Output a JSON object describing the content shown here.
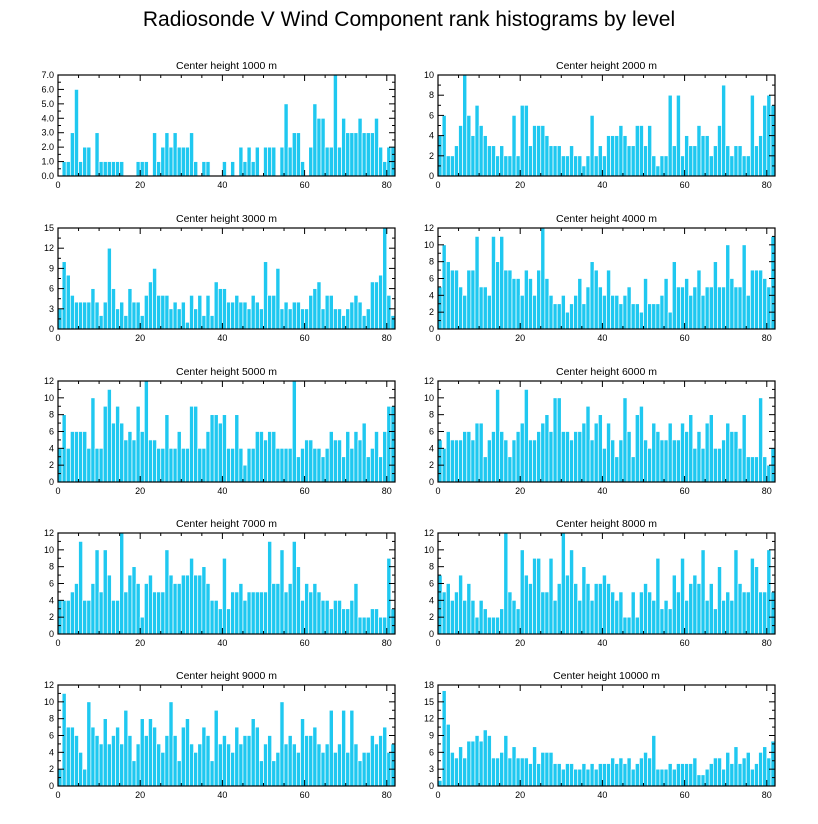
{
  "title": "Radiosonde V Wind Component rank histograms by level",
  "colors": {
    "bar": "#1FC8F0",
    "bar_edge": "#ffffff",
    "axis": "#000000"
  },
  "chart_data": [
    {
      "type": "bar",
      "title": "Center height 1000 m",
      "xlim": [
        0,
        82
      ],
      "ylim": [
        0,
        7.0
      ],
      "xticks": [
        0,
        20,
        40,
        60,
        80
      ],
      "yticks": [
        0.0,
        1.0,
        2.0,
        3.0,
        4.0,
        5.0,
        6.0,
        7.0
      ],
      "ytick_labels": [
        "0.0",
        "1.0",
        "2.0",
        "3.0",
        "4.0",
        "5.0",
        "6.0",
        "7.0"
      ],
      "values": [
        0,
        1,
        1,
        3,
        6,
        1,
        2,
        2,
        0,
        3,
        1,
        1,
        1,
        1,
        1,
        1,
        0,
        0,
        0,
        1,
        1,
        1,
        0,
        3,
        1,
        2,
        3,
        2,
        3,
        2,
        2,
        2,
        3,
        1,
        0,
        1,
        1,
        0,
        0,
        0,
        1,
        0,
        1,
        0,
        2,
        1,
        2,
        1,
        2,
        0,
        2,
        2,
        2,
        0,
        2,
        5,
        2,
        3,
        3,
        1,
        0,
        2,
        5,
        4,
        4,
        2,
        2,
        7,
        2,
        4,
        3,
        3,
        3,
        4,
        3,
        3,
        3,
        4,
        2,
        1,
        2,
        2
      ]
    },
    {
      "type": "bar",
      "title": "Center height 2000 m",
      "xlim": [
        0,
        82
      ],
      "ylim": [
        0,
        10
      ],
      "xticks": [
        0,
        20,
        40,
        60,
        80
      ],
      "yticks": [
        0,
        2,
        4,
        6,
        8,
        10
      ],
      "ytick_labels": [
        "0",
        "2",
        "4",
        "6",
        "8",
        "10"
      ],
      "values": [
        4,
        6,
        2,
        2,
        3,
        5,
        10,
        6,
        4,
        7,
        5,
        4,
        3,
        3,
        2,
        3,
        2,
        2,
        6,
        2,
        7,
        7,
        3,
        5,
        5,
        5,
        4,
        3,
        3,
        3,
        2,
        2,
        3,
        2,
        2,
        1,
        2,
        6,
        2,
        3,
        2,
        4,
        4,
        4,
        5,
        4,
        3,
        3,
        5,
        5,
        3,
        5,
        2,
        1,
        2,
        2,
        8,
        3,
        8,
        2,
        4,
        3,
        3,
        5,
        4,
        4,
        2,
        3,
        5,
        9,
        3,
        2,
        3,
        3,
        2,
        2,
        8,
        3,
        4,
        7,
        8,
        7
      ]
    },
    {
      "type": "bar",
      "title": "Center height 3000 m",
      "xlim": [
        0,
        82
      ],
      "ylim": [
        0,
        15
      ],
      "xticks": [
        0,
        20,
        40,
        60,
        80
      ],
      "yticks": [
        0,
        3,
        6,
        9,
        12,
        15
      ],
      "ytick_labels": [
        "0",
        "3",
        "6",
        "9",
        "12",
        "15"
      ],
      "values": [
        3,
        10,
        8,
        5,
        4,
        4,
        4,
        4,
        6,
        4,
        2,
        4,
        12,
        6,
        3,
        4,
        2,
        6,
        4,
        4,
        2,
        5,
        7,
        9,
        5,
        5,
        5,
        3,
        4,
        3,
        4,
        1,
        5,
        3,
        5,
        2,
        5,
        2,
        7,
        6,
        6,
        4,
        4,
        5,
        4,
        4,
        3,
        5,
        4,
        3,
        10,
        5,
        5,
        9,
        3,
        4,
        3,
        4,
        4,
        3,
        3,
        5,
        6,
        7,
        3,
        5,
        5,
        3,
        3,
        2,
        3,
        4,
        5,
        4,
        2,
        3,
        7,
        7,
        8,
        15,
        5,
        2
      ]
    },
    {
      "type": "bar",
      "title": "Center height 4000 m",
      "xlim": [
        0,
        82
      ],
      "ylim": [
        0,
        12
      ],
      "xticks": [
        0,
        20,
        40,
        60,
        80
      ],
      "yticks": [
        0,
        2,
        4,
        6,
        8,
        10,
        12
      ],
      "ytick_labels": [
        "0",
        "2",
        "4",
        "6",
        "8",
        "10",
        "12"
      ],
      "values": [
        5,
        10,
        8,
        7,
        7,
        5,
        4,
        7,
        7,
        11,
        5,
        5,
        4,
        11,
        8,
        11,
        7,
        7,
        6,
        6,
        4,
        7,
        6,
        4,
        7,
        12,
        6,
        4,
        3,
        3,
        4,
        2,
        3,
        4,
        6,
        3,
        5,
        8,
        7,
        5,
        4,
        7,
        4,
        4,
        3,
        4,
        5,
        3,
        3,
        2,
        6,
        3,
        3,
        3,
        4,
        6,
        2,
        8,
        5,
        5,
        6,
        4,
        5,
        7,
        4,
        5,
        5,
        8,
        5,
        5,
        10,
        6,
        5,
        5,
        10,
        4,
        7,
        7,
        7,
        6,
        5,
        11
      ]
    },
    {
      "type": "bar",
      "title": "Center height 5000 m",
      "xlim": [
        0,
        82
      ],
      "ylim": [
        0,
        12
      ],
      "xticks": [
        0,
        20,
        40,
        60,
        80
      ],
      "yticks": [
        0,
        2,
        4,
        6,
        8,
        10,
        12
      ],
      "ytick_labels": [
        "0",
        "2",
        "4",
        "6",
        "8",
        "10",
        "12"
      ],
      "values": [
        4,
        8,
        4,
        6,
        6,
        6,
        6,
        4,
        10,
        4,
        4,
        9,
        11,
        7,
        9,
        7,
        5,
        6,
        5,
        9,
        6,
        12,
        5,
        5,
        4,
        4,
        8,
        4,
        4,
        6,
        4,
        4,
        9,
        9,
        4,
        4,
        6,
        8,
        8,
        7,
        8,
        4,
        4,
        8,
        4,
        2,
        4,
        4,
        6,
        6,
        5,
        6,
        6,
        4,
        4,
        4,
        4,
        12,
        3,
        4,
        5,
        5,
        4,
        4,
        3,
        4,
        6,
        5,
        5,
        3,
        6,
        4,
        6,
        5,
        7,
        3,
        4,
        6,
        3,
        6,
        9,
        9
      ]
    },
    {
      "type": "bar",
      "title": "Center height 6000 m",
      "xlim": [
        0,
        82
      ],
      "ylim": [
        0,
        12
      ],
      "xticks": [
        0,
        20,
        40,
        60,
        80
      ],
      "yticks": [
        0,
        2,
        4,
        6,
        8,
        10,
        12
      ],
      "ytick_labels": [
        "0",
        "2",
        "4",
        "6",
        "8",
        "10",
        "12"
      ],
      "values": [
        5,
        4,
        6,
        5,
        5,
        5,
        6,
        6,
        5,
        7,
        7,
        3,
        5,
        6,
        11,
        6,
        5,
        3,
        5,
        6,
        7,
        11,
        5,
        5,
        6,
        7,
        8,
        6,
        10,
        10,
        6,
        6,
        5,
        6,
        6,
        7,
        9,
        5,
        7,
        8,
        4,
        7,
        5,
        3,
        5,
        10,
        6,
        3,
        8,
        9,
        5,
        4,
        7,
        6,
        5,
        5,
        7,
        5,
        5,
        7,
        6,
        8,
        4,
        6,
        4,
        7,
        8,
        4,
        4,
        5,
        7,
        6,
        6,
        4,
        8,
        3,
        3,
        3,
        10,
        3,
        2,
        4
      ]
    },
    {
      "type": "bar",
      "title": "Center height 7000 m",
      "xlim": [
        0,
        82
      ],
      "ylim": [
        0,
        12
      ],
      "xticks": [
        0,
        20,
        40,
        60,
        80
      ],
      "yticks": [
        0,
        2,
        4,
        6,
        8,
        10,
        12
      ],
      "ytick_labels": [
        "0",
        "2",
        "4",
        "6",
        "8",
        "10",
        "12"
      ],
      "values": [
        4,
        4,
        4,
        5,
        6,
        11,
        4,
        4,
        6,
        10,
        5,
        10,
        7,
        4,
        4,
        12,
        5,
        7,
        8,
        6,
        2,
        6,
        7,
        5,
        5,
        5,
        10,
        7,
        6,
        6,
        7,
        7,
        9,
        7,
        7,
        8,
        6,
        4,
        4,
        3,
        9,
        3,
        5,
        5,
        6,
        4,
        5,
        5,
        5,
        5,
        5,
        11,
        6,
        6,
        10,
        5,
        6,
        11,
        8,
        4,
        6,
        5,
        6,
        5,
        4,
        4,
        3,
        4,
        4,
        3,
        3,
        4,
        6,
        2,
        2,
        2,
        3,
        3,
        2,
        2,
        9,
        3
      ]
    },
    {
      "type": "bar",
      "title": "Center height 8000 m",
      "xlim": [
        0,
        82
      ],
      "ylim": [
        0,
        12
      ],
      "xticks": [
        0,
        20,
        40,
        60,
        80
      ],
      "yticks": [
        0,
        2,
        4,
        6,
        8,
        10,
        12
      ],
      "ytick_labels": [
        "0",
        "2",
        "4",
        "6",
        "8",
        "10",
        "12"
      ],
      "values": [
        7,
        5,
        6,
        4,
        5,
        7,
        4,
        6,
        4,
        2,
        4,
        3,
        2,
        2,
        2,
        3,
        12,
        5,
        4,
        3,
        10,
        7,
        6,
        9,
        9,
        5,
        5,
        9,
        4,
        6,
        12,
        7,
        10,
        6,
        4,
        8,
        6,
        4,
        6,
        6,
        7,
        6,
        5,
        4,
        5,
        2,
        2,
        5,
        2,
        5,
        6,
        5,
        4,
        9,
        3,
        4,
        3,
        7,
        5,
        9,
        4,
        6,
        7,
        6,
        10,
        4,
        6,
        3,
        8,
        4,
        5,
        4,
        10,
        6,
        5,
        5,
        9,
        8,
        5,
        5,
        10,
        5
      ]
    },
    {
      "type": "bar",
      "title": "Center height 9000 m",
      "xlim": [
        0,
        82
      ],
      "ylim": [
        0,
        12
      ],
      "xticks": [
        0,
        20,
        40,
        60,
        80
      ],
      "yticks": [
        0,
        2,
        4,
        6,
        8,
        10,
        12
      ],
      "ytick_labels": [
        "0",
        "2",
        "4",
        "6",
        "8",
        "10",
        "12"
      ],
      "values": [
        2,
        11,
        7,
        7,
        6,
        4,
        2,
        10,
        7,
        6,
        5,
        8,
        5,
        6,
        7,
        5,
        9,
        6,
        3,
        5,
        8,
        6,
        8,
        7,
        5,
        4,
        6,
        10,
        6,
        3,
        7,
        8,
        5,
        4,
        5,
        7,
        6,
        3,
        9,
        5,
        6,
        5,
        4,
        7,
        5,
        6,
        6,
        8,
        7,
        3,
        5,
        6,
        3,
        4,
        10,
        5,
        6,
        5,
        4,
        8,
        6,
        6,
        7,
        5,
        4,
        5,
        9,
        4,
        5,
        9,
        4,
        9,
        5,
        3,
        4,
        4,
        6,
        5,
        6,
        7,
        4,
        5
      ]
    },
    {
      "type": "bar",
      "title": "Center height 10000 m",
      "xlim": [
        0,
        82
      ],
      "ylim": [
        0,
        18
      ],
      "xticks": [
        0,
        20,
        40,
        60,
        80
      ],
      "yticks": [
        0,
        3,
        6,
        9,
        12,
        15,
        18
      ],
      "ytick_labels": [
        "0",
        "3",
        "6",
        "9",
        "12",
        "15",
        "18"
      ],
      "values": [
        1,
        17,
        11,
        6,
        5,
        7,
        5,
        8,
        8,
        9,
        8,
        10,
        9,
        5,
        5,
        6,
        9,
        5,
        7,
        5,
        5,
        5,
        4,
        7,
        4,
        6,
        6,
        6,
        4,
        4,
        3,
        4,
        4,
        3,
        3,
        4,
        3,
        4,
        3,
        4,
        4,
        4,
        5,
        4,
        5,
        4,
        5,
        3,
        4,
        5,
        6,
        5,
        9,
        3,
        3,
        3,
        4,
        3,
        4,
        4,
        4,
        4,
        5,
        2,
        2,
        3,
        4,
        5,
        5,
        3,
        6,
        4,
        7,
        4,
        5,
        6,
        3,
        4,
        6,
        7,
        5,
        8
      ]
    }
  ]
}
